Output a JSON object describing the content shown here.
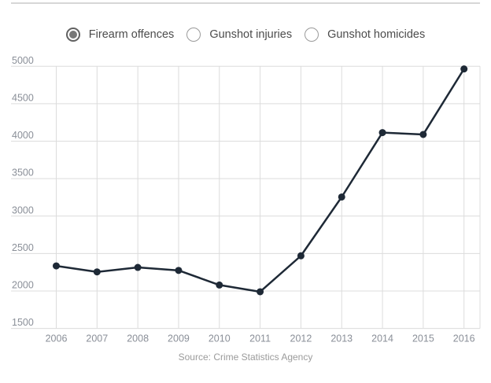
{
  "legend": {
    "options": [
      {
        "label": "Firearm offences",
        "selected": true
      },
      {
        "label": "Gunshot injuries",
        "selected": false
      },
      {
        "label": "Gunshot homicides",
        "selected": false
      }
    ]
  },
  "source": {
    "text": "Source: Crime Statistics Agency"
  },
  "colors": {
    "line": "#1e2936",
    "grid": "#dcdcdc",
    "tick_label": "#8a8f98",
    "top_border": "#d7d7d7"
  },
  "chart_data": {
    "type": "line",
    "title": "",
    "xlabel": "",
    "ylabel": "",
    "categories": [
      "2006",
      "2007",
      "2008",
      "2009",
      "2010",
      "2011",
      "2012",
      "2013",
      "2014",
      "2015",
      "2016"
    ],
    "series": [
      {
        "name": "Firearm offences",
        "values": [
          2335,
          2255,
          2315,
          2275,
          2080,
          1990,
          2470,
          3255,
          4115,
          4090,
          4965
        ]
      }
    ],
    "ylim": [
      1500,
      5000
    ],
    "ytick_step": 500,
    "yticks": [
      1500,
      2000,
      2500,
      3000,
      3500,
      4000,
      4500,
      5000
    ],
    "grid": true,
    "legend_position": "top",
    "marker": "circle"
  }
}
